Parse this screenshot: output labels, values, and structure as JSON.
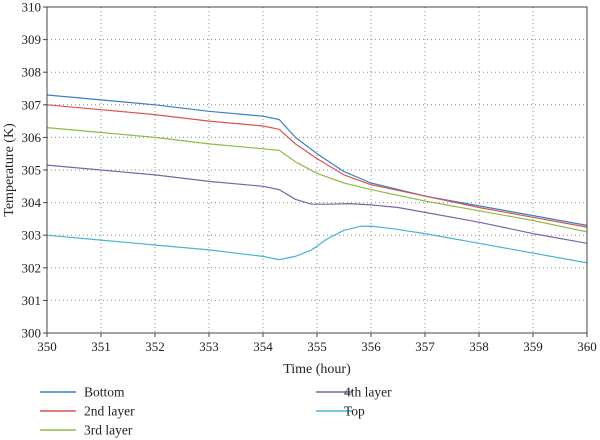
{
  "chart_data": {
    "type": "line",
    "title": "",
    "xlabel": "Time (hour)",
    "ylabel": "Temperature (K)",
    "xlim": [
      350,
      360
    ],
    "ylim": [
      300,
      310
    ],
    "xticks": [
      "350",
      "351",
      "352",
      "353",
      "354",
      "355",
      "356",
      "357",
      "358",
      "359",
      "360"
    ],
    "yticks": [
      "300",
      "301",
      "302",
      "303",
      "304",
      "305",
      "306",
      "307",
      "308",
      "309",
      "310"
    ],
    "grid": "dotted",
    "legend_position": "bottom",
    "series": [
      {
        "name": "Bottom",
        "color": "#3a7fc1",
        "x": [
          350,
          351,
          352,
          353,
          354,
          354.3,
          354.6,
          355,
          355.5,
          356,
          357,
          358,
          359,
          360
        ],
        "y": [
          307.3,
          307.15,
          307.0,
          306.8,
          306.65,
          306.55,
          306.0,
          305.5,
          304.95,
          304.6,
          304.2,
          303.9,
          303.6,
          303.3
        ]
      },
      {
        "name": "2nd layer",
        "color": "#d9534f",
        "x": [
          350,
          351,
          352,
          353,
          354,
          354.3,
          354.6,
          355,
          355.5,
          356,
          357,
          358,
          359,
          360
        ],
        "y": [
          307.0,
          306.85,
          306.7,
          306.5,
          306.35,
          306.25,
          305.8,
          305.35,
          304.85,
          304.55,
          304.2,
          303.85,
          303.55,
          303.25
        ]
      },
      {
        "name": "3rd layer",
        "color": "#8fbc45",
        "x": [
          350,
          351,
          352,
          353,
          354,
          354.3,
          354.6,
          355,
          355.5,
          356,
          357,
          358,
          359,
          360
        ],
        "y": [
          306.3,
          306.15,
          306.0,
          305.8,
          305.65,
          305.6,
          305.25,
          304.9,
          304.6,
          304.4,
          304.05,
          303.75,
          303.45,
          303.1
        ]
      },
      {
        "name": "4th layer",
        "color": "#7e63a8",
        "x": [
          350,
          351,
          352,
          353,
          354,
          354.3,
          354.6,
          354.9,
          355.2,
          355.6,
          356,
          356.5,
          357,
          358,
          359,
          360
        ],
        "y": [
          305.15,
          305.0,
          304.85,
          304.65,
          304.5,
          304.4,
          304.1,
          303.95,
          303.95,
          303.97,
          303.93,
          303.85,
          303.7,
          303.4,
          303.05,
          302.75
        ]
      },
      {
        "name": "Top",
        "color": "#4ab3d4",
        "x": [
          350,
          351,
          352,
          353,
          354,
          354.3,
          354.6,
          354.9,
          355.2,
          355.5,
          355.8,
          356,
          356.4,
          357,
          358,
          359,
          360
        ],
        "y": [
          303.0,
          302.85,
          302.7,
          302.55,
          302.35,
          302.25,
          302.35,
          302.55,
          302.9,
          303.15,
          303.27,
          303.28,
          303.2,
          303.05,
          302.75,
          302.45,
          302.15
        ]
      }
    ]
  }
}
